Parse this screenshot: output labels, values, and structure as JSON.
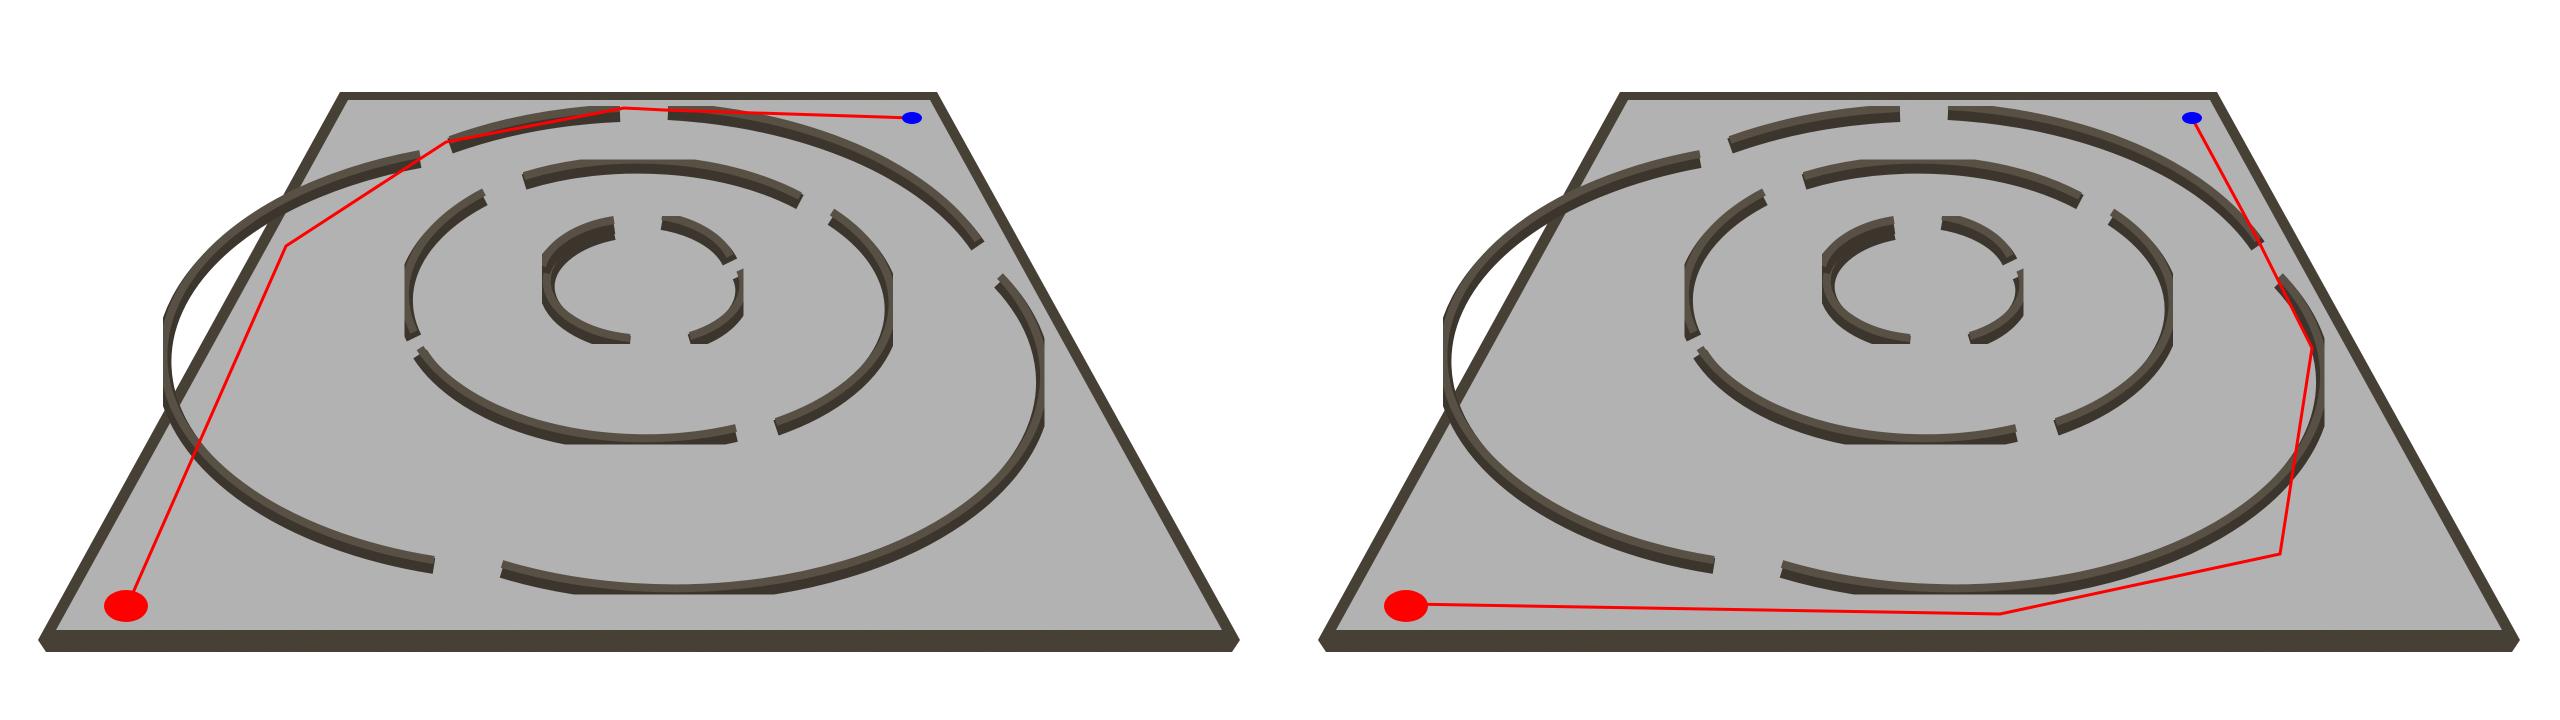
{
  "colors": {
    "background": "#ffffff",
    "floor": "#b2b2b2",
    "floor_edge": "#8f8f8f",
    "wall_top": "#5c5447",
    "wall_side": "#3e382f",
    "wall_edge": "#2a251e",
    "path": "#ff0000",
    "start_marker": "#ff0000",
    "goal_marker": "#0000ff"
  },
  "panels": [
    {
      "id": "left-maze",
      "path_route": "around-left"
    },
    {
      "id": "right-maze",
      "path_route": "around-right"
    }
  ]
}
